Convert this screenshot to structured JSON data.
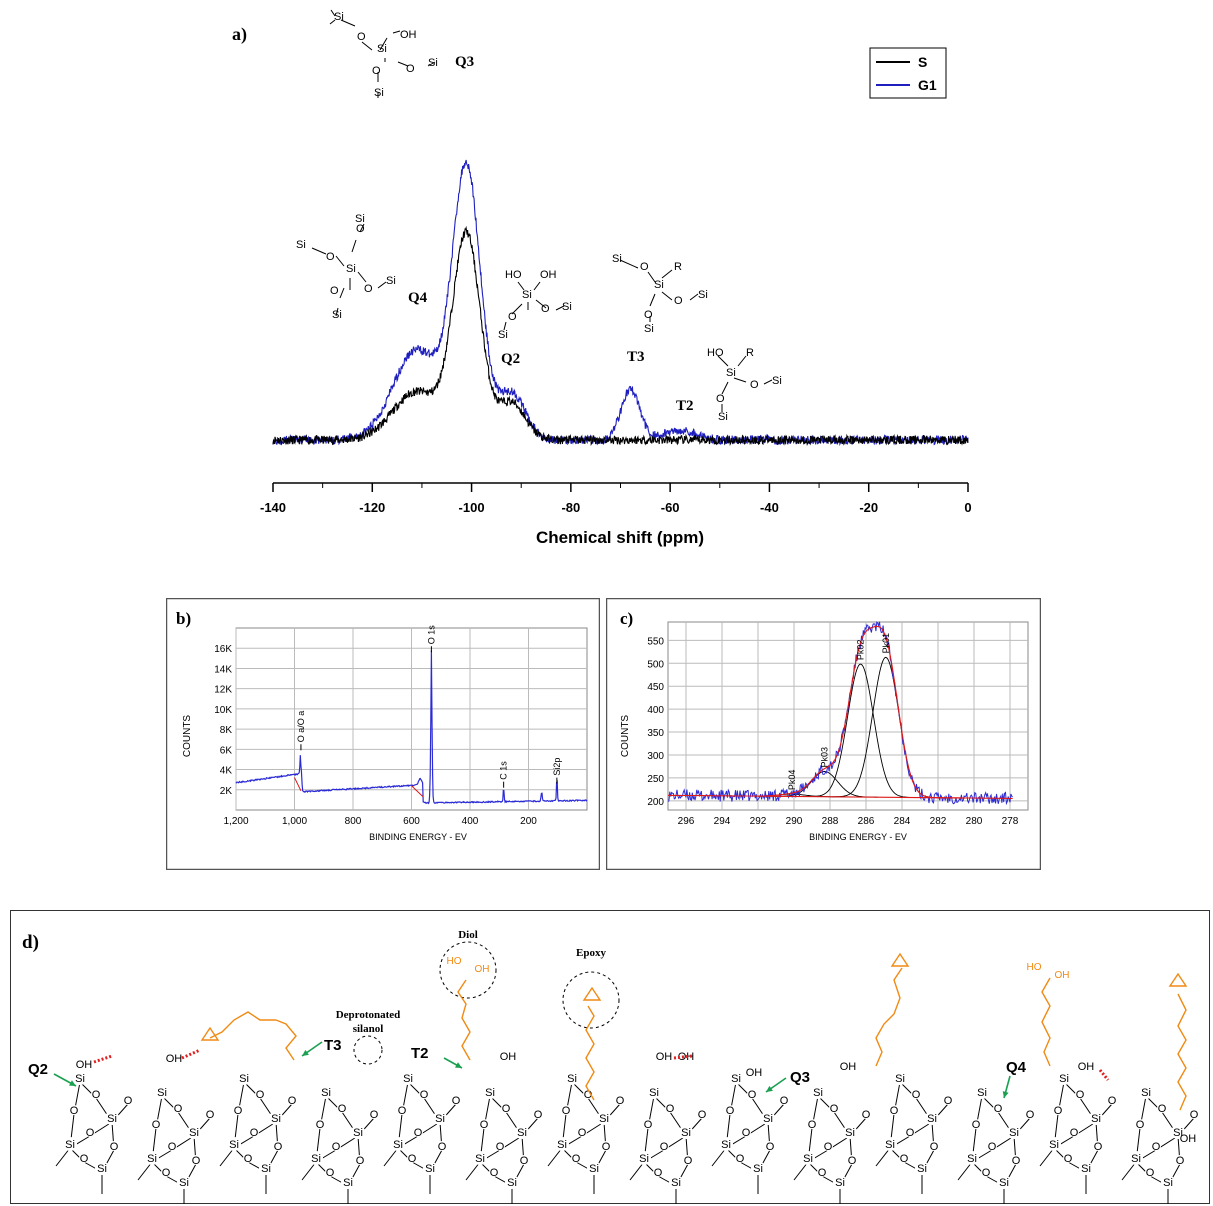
{
  "colors": {
    "series_s": "#000000",
    "series_g1": "#1f1fbf",
    "xps_blue": "#2b2bd6",
    "fit_red": "#e01818",
    "chain_orange": "#f08a14",
    "arrow_green": "#1aa050",
    "hbond_red": "#e02020"
  },
  "chart_data": [
    {
      "panel": "a)",
      "type": "line",
      "xlabel": "Chemical shift (ppm)",
      "xlim": [
        -140,
        0
      ],
      "x_ticks": [
        "-140",
        "-120",
        "-100",
        "-80",
        "-60",
        "-40",
        "-20",
        "0"
      ],
      "legend": {
        "placement": "top-right",
        "entries": [
          "S",
          "G1"
        ]
      },
      "peak_labels": [
        "Q4",
        "Q3",
        "Q2",
        "T3",
        "T2"
      ],
      "peaks_ppm": {
        "Q4": -111,
        "Q3": -101,
        "Q2": -92,
        "T3": -68,
        "T2": -58
      },
      "series": [
        {
          "name": "S",
          "peaks": [
            {
              "x": -111,
              "height": 0.44
            },
            {
              "x": -101,
              "height": 1.84
            },
            {
              "x": -92,
              "height": 0.34
            }
          ]
        },
        {
          "name": "G1",
          "peaks": [
            {
              "x": -111,
              "height": 0.82
            },
            {
              "x": -101,
              "height": 2.43
            },
            {
              "x": -92,
              "height": 0.43
            },
            {
              "x": -68,
              "height": 0.46
            },
            {
              "x": -58,
              "height": 0.09
            }
          ]
        }
      ],
      "noise_level": 0.04
    },
    {
      "panel": "b)",
      "type": "line",
      "xlabel": "BINDING ENERGY - EV",
      "ylabel": "COUNTS",
      "xlim": [
        1200,
        0
      ],
      "ylim": [
        0,
        18000
      ],
      "x_ticks": [
        1200,
        1000,
        800,
        600,
        400,
        200
      ],
      "x_tick_labels": [
        "1,200",
        "1,000",
        "800",
        "600",
        "400",
        "200"
      ],
      "y_ticks": [
        2000,
        4000,
        6000,
        8000,
        10000,
        12000,
        14000,
        16000
      ],
      "y_tick_labels": [
        "2K",
        "4K",
        "6K",
        "8K",
        "10K",
        "12K",
        "14K",
        "16K"
      ],
      "peak_labels": [
        {
          "text": "O 1s",
          "x": 532,
          "y": 16200
        },
        {
          "text": "O a/O a",
          "x": 978,
          "y": 6500
        },
        {
          "text": "C 1s",
          "x": 285,
          "y": 2800
        },
        {
          "text": "Si2p",
          "x": 103,
          "y": 3200
        }
      ]
    },
    {
      "panel": "c)",
      "type": "line",
      "xlabel": "BINDING ENERGY - EV",
      "ylabel": "COUNTS",
      "xlim": [
        297,
        277
      ],
      "ylim": [
        180,
        590
      ],
      "x_ticks": [
        296,
        294,
        292,
        290,
        288,
        286,
        284,
        282,
        280,
        278
      ],
      "y_ticks": [
        200,
        250,
        300,
        350,
        400,
        450,
        500,
        550
      ],
      "components": [
        {
          "name": "Pk01",
          "center": 284.9,
          "amp": 305
        },
        {
          "name": "Pk02",
          "center": 286.3,
          "amp": 290
        },
        {
          "name": "Pk03",
          "center": 288.3,
          "amp": 55
        },
        {
          "name": "Pk04",
          "center": 290.1,
          "amp": 5
        }
      ],
      "baseline": {
        "left": 212,
        "right": 205
      }
    }
  ],
  "structure": {
    "panel_label": "d)",
    "labels": {
      "diol": "Diol",
      "epoxy": "Epoxy",
      "deprot_1": "Deprotonated",
      "deprot_2": "silanol"
    },
    "site_labels": [
      "Q2",
      "T3",
      "T2",
      "Q3",
      "Q4"
    ]
  }
}
